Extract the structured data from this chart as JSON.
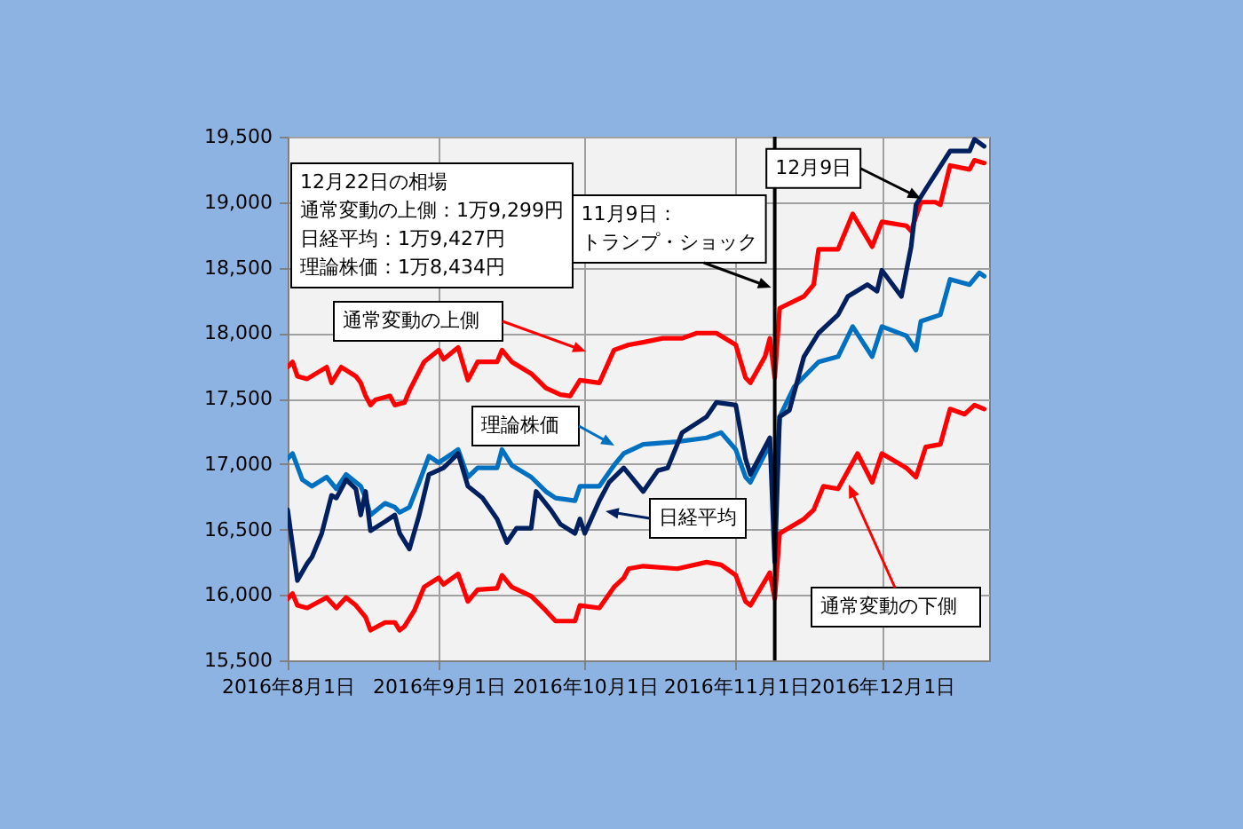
{
  "chart_data": {
    "type": "line",
    "xlim": [
      "2016-08-01",
      "2016-12-23"
    ],
    "ylim": [
      15500,
      19500
    ],
    "xticks": [
      {
        "value": "2016-08-01",
        "label": "2016年8月1日"
      },
      {
        "value": "2016-09-01",
        "label": "2016年9月1日"
      },
      {
        "value": "2016-10-01",
        "label": "2016年10月1日"
      },
      {
        "value": "2016-11-01",
        "label": "2016年11月1日"
      },
      {
        "value": "2016-12-01",
        "label": "2016年12月1日"
      }
    ],
    "yticks": [
      {
        "value": 15500,
        "label": "15,500"
      },
      {
        "value": 16000,
        "label": "16,000"
      },
      {
        "value": 16500,
        "label": "16,500"
      },
      {
        "value": 17000,
        "label": "17,000"
      },
      {
        "value": 17500,
        "label": "17,500"
      },
      {
        "value": 18000,
        "label": "18,000"
      },
      {
        "value": 18500,
        "label": "18,500"
      },
      {
        "value": 19000,
        "label": "19,000"
      },
      {
        "value": 19500,
        "label": "19,500"
      }
    ],
    "grid": true,
    "series": [
      {
        "name": "通常変動の上側",
        "color": "#ff0000",
        "x": [
          "2016-08-01",
          "2016-08-02",
          "2016-08-03",
          "2016-08-05",
          "2016-08-09",
          "2016-08-10",
          "2016-08-12",
          "2016-08-15",
          "2016-08-16",
          "2016-08-17",
          "2016-08-18",
          "2016-08-19",
          "2016-08-22",
          "2016-08-23",
          "2016-08-25",
          "2016-08-26",
          "2016-08-29",
          "2016-09-01",
          "2016-09-02",
          "2016-09-05",
          "2016-09-07",
          "2016-09-09",
          "2016-09-13",
          "2016-09-14",
          "2016-09-16",
          "2016-09-20",
          "2016-09-23",
          "2016-09-26",
          "2016-09-28",
          "2016-09-30",
          "2016-10-04",
          "2016-10-07",
          "2016-10-10",
          "2016-10-13",
          "2016-10-17",
          "2016-10-21",
          "2016-10-24",
          "2016-10-28",
          "2016-11-01",
          "2016-11-03",
          "2016-11-04",
          "2016-11-07",
          "2016-11-08",
          "2016-11-09",
          "2016-11-10",
          "2016-11-15",
          "2016-11-17",
          "2016-11-18",
          "2016-11-22",
          "2016-11-25",
          "2016-11-29",
          "2016-12-01",
          "2016-12-06",
          "2016-12-07",
          "2016-12-09",
          "2016-12-12",
          "2016-12-13",
          "2016-12-15",
          "2016-12-19",
          "2016-12-20",
          "2016-12-22"
        ],
        "values": [
          17740,
          17780,
          17670,
          17650,
          17740,
          17620,
          17740,
          17670,
          17620,
          17520,
          17450,
          17490,
          17520,
          17450,
          17470,
          17560,
          17780,
          17870,
          17800,
          17890,
          17640,
          17780,
          17780,
          17870,
          17780,
          17690,
          17580,
          17530,
          17520,
          17640,
          17620,
          17870,
          17910,
          17930,
          17960,
          17960,
          18000,
          18000,
          17910,
          17660,
          17620,
          17820,
          17960,
          17660,
          18190,
          18280,
          18370,
          18640,
          18640,
          18910,
          18660,
          18850,
          18820,
          18780,
          19000,
          19000,
          18980,
          19280,
          19250,
          19320,
          19299
        ]
      },
      {
        "name": "通常変動の下側",
        "color": "#ff0000",
        "x": [
          "2016-08-01",
          "2016-08-02",
          "2016-08-03",
          "2016-08-05",
          "2016-08-09",
          "2016-08-11",
          "2016-08-13",
          "2016-08-15",
          "2016-08-17",
          "2016-08-18",
          "2016-08-21",
          "2016-08-23",
          "2016-08-24",
          "2016-08-25",
          "2016-08-27",
          "2016-08-29",
          "2016-09-01",
          "2016-09-02",
          "2016-09-05",
          "2016-09-07",
          "2016-09-09",
          "2016-09-13",
          "2016-09-14",
          "2016-09-16",
          "2016-09-20",
          "2016-09-23",
          "2016-09-25",
          "2016-09-29",
          "2016-09-30",
          "2016-10-04",
          "2016-10-07",
          "2016-10-09",
          "2016-10-10",
          "2016-10-13",
          "2016-10-20",
          "2016-10-26",
          "2016-10-29",
          "2016-11-01",
          "2016-11-03",
          "2016-11-04",
          "2016-11-08",
          "2016-11-09",
          "2016-11-10",
          "2016-11-15",
          "2016-11-17",
          "2016-11-19",
          "2016-11-22",
          "2016-11-26",
          "2016-11-29",
          "2016-12-01",
          "2016-12-06",
          "2016-12-08",
          "2016-12-10",
          "2016-12-13",
          "2016-12-15",
          "2016-12-18",
          "2016-12-20",
          "2016-12-22"
        ],
        "values": [
          15970,
          16010,
          15920,
          15900,
          15980,
          15900,
          15980,
          15920,
          15830,
          15730,
          15790,
          15790,
          15730,
          15760,
          15880,
          16060,
          16130,
          16080,
          16160,
          15950,
          16040,
          16050,
          16150,
          16060,
          15990,
          15880,
          15800,
          15800,
          15920,
          15900,
          16060,
          16130,
          16200,
          16220,
          16200,
          16250,
          16230,
          16150,
          15950,
          15920,
          16170,
          15970,
          16470,
          16580,
          16650,
          16830,
          16810,
          17080,
          16860,
          17080,
          16970,
          16900,
          17130,
          17150,
          17420,
          17380,
          17450,
          17420
        ]
      },
      {
        "name": "理論株価",
        "color": "#0070c0",
        "x": [
          "2016-08-01",
          "2016-08-02",
          "2016-08-04",
          "2016-08-06",
          "2016-08-09",
          "2016-08-11",
          "2016-08-13",
          "2016-08-16",
          "2016-08-17",
          "2016-08-18",
          "2016-08-21",
          "2016-08-23",
          "2016-08-24",
          "2016-08-26",
          "2016-08-28",
          "2016-08-30",
          "2016-09-01",
          "2016-09-05",
          "2016-09-07",
          "2016-09-09",
          "2016-09-13",
          "2016-09-14",
          "2016-09-16",
          "2016-09-20",
          "2016-09-23",
          "2016-09-25",
          "2016-09-29",
          "2016-09-30",
          "2016-10-04",
          "2016-10-07",
          "2016-10-09",
          "2016-10-13",
          "2016-10-20",
          "2016-10-26",
          "2016-10-29",
          "2016-11-01",
          "2016-11-03",
          "2016-11-04",
          "2016-11-08",
          "2016-11-09",
          "2016-11-10",
          "2016-11-13",
          "2016-11-18",
          "2016-11-22",
          "2016-11-25",
          "2016-11-29",
          "2016-12-01",
          "2016-12-06",
          "2016-12-08",
          "2016-12-09",
          "2016-12-13",
          "2016-12-15",
          "2016-12-19",
          "2016-12-21",
          "2016-12-22"
        ],
        "values": [
          17040,
          17080,
          16880,
          16830,
          16900,
          16810,
          16920,
          16830,
          16740,
          16610,
          16700,
          16670,
          16630,
          16670,
          16860,
          17060,
          17010,
          17110,
          16900,
          16970,
          16970,
          17110,
          16990,
          16900,
          16790,
          16740,
          16720,
          16830,
          16830,
          16990,
          17080,
          17150,
          17170,
          17200,
          17240,
          17110,
          16900,
          16860,
          17150,
          16760,
          17360,
          17590,
          17780,
          17820,
          18050,
          17820,
          18050,
          17980,
          17870,
          18090,
          18140,
          18410,
          18370,
          18460,
          18434
        ]
      },
      {
        "name": "日経平均",
        "color": "#002060",
        "x": [
          "2016-08-01",
          "2016-08-03",
          "2016-08-05",
          "2016-08-06",
          "2016-08-08",
          "2016-08-10",
          "2016-08-11",
          "2016-08-13",
          "2016-08-15",
          "2016-08-16",
          "2016-08-17",
          "2016-08-18",
          "2016-08-21",
          "2016-08-23",
          "2016-08-24",
          "2016-08-26",
          "2016-08-28",
          "2016-08-30",
          "2016-09-02",
          "2016-09-05",
          "2016-09-07",
          "2016-09-10",
          "2016-09-13",
          "2016-09-15",
          "2016-09-17",
          "2016-09-20",
          "2016-09-21",
          "2016-09-24",
          "2016-09-26",
          "2016-09-29",
          "2016-09-30",
          "2016-10-01",
          "2016-10-04",
          "2016-10-06",
          "2016-10-09",
          "2016-10-11",
          "2016-10-13",
          "2016-10-16",
          "2016-10-18",
          "2016-10-21",
          "2016-10-26",
          "2016-10-28",
          "2016-11-01",
          "2016-11-03",
          "2016-11-04",
          "2016-11-08",
          "2016-11-09",
          "2016-11-10",
          "2016-11-12",
          "2016-11-15",
          "2016-11-18",
          "2016-11-22",
          "2016-11-24",
          "2016-11-28",
          "2016-11-30",
          "2016-12-01",
          "2016-12-05",
          "2016-12-07",
          "2016-12-08",
          "2016-12-10",
          "2016-12-15",
          "2016-12-19",
          "2016-12-20",
          "2016-12-22"
        ],
        "values": [
          16650,
          16110,
          16240,
          16290,
          16470,
          16760,
          16740,
          16880,
          16810,
          16610,
          16790,
          16490,
          16560,
          16610,
          16470,
          16350,
          16610,
          16920,
          16970,
          17080,
          16830,
          16740,
          16580,
          16400,
          16510,
          16510,
          16790,
          16650,
          16540,
          16470,
          16580,
          16470,
          16720,
          16860,
          16970,
          16880,
          16790,
          16950,
          16970,
          17240,
          17360,
          17470,
          17450,
          17040,
          16920,
          17200,
          16250,
          17360,
          17410,
          17820,
          18000,
          18140,
          18280,
          18370,
          18320,
          18480,
          18280,
          18660,
          18980,
          19100,
          19390,
          19390,
          19480,
          19427
        ]
      }
    ],
    "ref_lines": [
      {
        "axis": "x",
        "value": "2016-11-09",
        "label": "11月9日：トランプ・ショック",
        "color": "#000000"
      }
    ],
    "annotations": [
      "12月22日の相場",
      "通常変動の上側：1万9,299円",
      "日経平均：1万9,427円",
      "理論株価：1万8,434円",
      {
        "text": "12月9日",
        "x": "2016-12-09",
        "y": 19000
      }
    ]
  }
}
